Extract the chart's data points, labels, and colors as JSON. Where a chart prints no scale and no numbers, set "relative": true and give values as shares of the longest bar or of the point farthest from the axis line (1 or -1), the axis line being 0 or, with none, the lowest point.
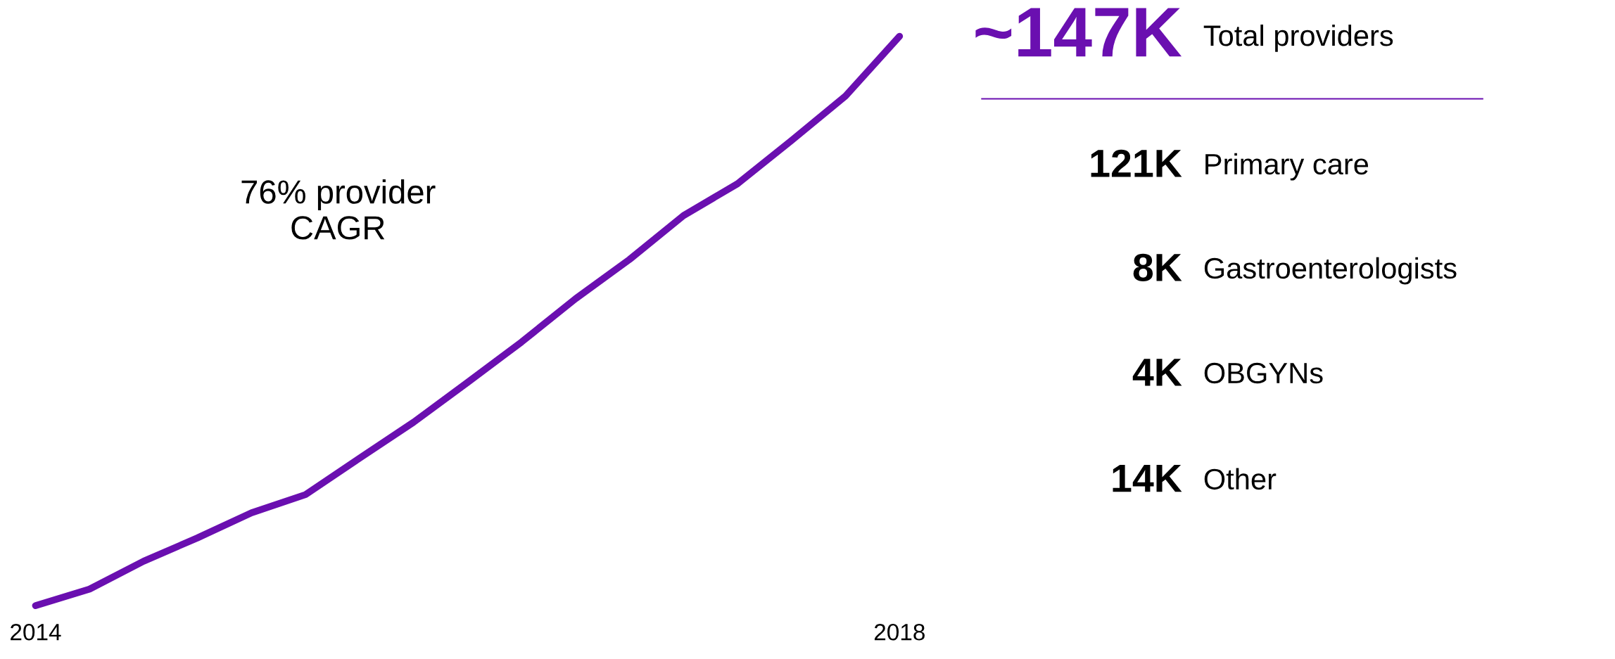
{
  "chart_data": [
    {
      "type": "line",
      "relative": true,
      "color": "#6a0fb0",
      "categories": [
        "2014",
        null,
        null,
        null,
        null,
        null,
        null,
        null,
        null,
        null,
        null,
        null,
        null,
        null,
        null,
        null,
        "2018"
      ],
      "values": [
        0,
        0.029,
        0.078,
        0.119,
        0.163,
        0.195,
        0.259,
        0.322,
        0.392,
        0.463,
        0.539,
        0.608,
        0.685,
        0.741,
        0.817,
        0.895,
        1
      ],
      "annotations": [
        "76% provider\nCAGR"
      ]
    },
    {
      "type": "other",
      "color": "#6a0fb0",
      "annotations": [
        "~147K",
        "Total providers",
        "121K",
        "Primary care",
        "8K",
        "Gastroenterologists",
        "4K",
        "OBGYNs",
        "14K",
        "Other"
      ]
    }
  ]
}
